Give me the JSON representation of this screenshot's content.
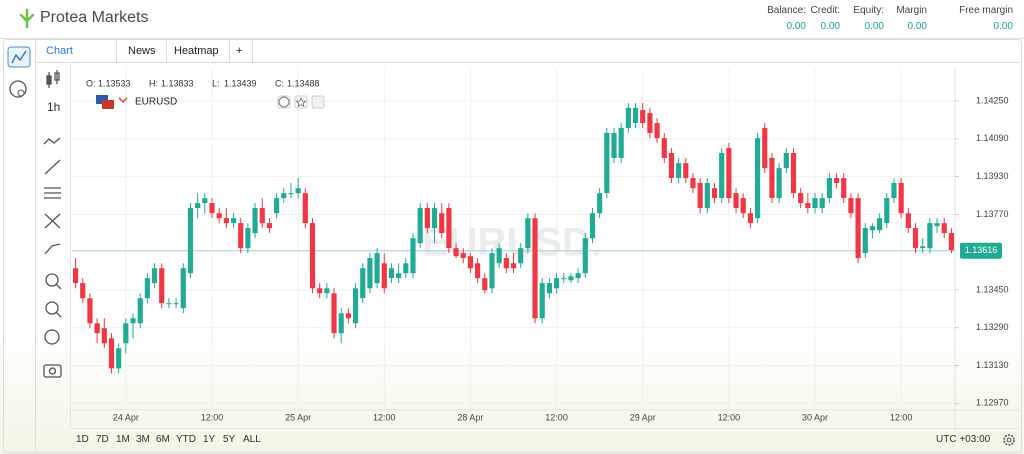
{
  "header": {
    "logo": "Protea Markets",
    "fields": [
      {
        "label": "Balance:",
        "value": "0.00"
      },
      {
        "label": "Credit:",
        "value": "0.00"
      },
      {
        "label": "Equity:",
        "value": "0.00"
      },
      {
        "label": "Margin",
        "value": "0.00"
      },
      {
        "label": "Free margin",
        "value": "0.00"
      }
    ]
  },
  "tabs": [
    "Chart",
    "News",
    "Heatmap",
    "+"
  ],
  "timeframe": "1h",
  "ranges": [
    "1D",
    "7D",
    "1M",
    "3M",
    "6M",
    "YTD",
    "1Y",
    "5Y",
    "ALL"
  ],
  "timezone": "UTC +03:00",
  "chart_data": {
    "type": "candlestick",
    "symbol": "EURUSD",
    "watermark": "EURUSD.",
    "info": [
      {
        "label": "O:",
        "value": 1.13533
      },
      {
        "label": "H:",
        "value": 1.13833
      },
      {
        "label": "L:",
        "value": 1.13439
      },
      {
        "label": "C:",
        "value": 1.13488
      }
    ],
    "up_color": "#22ab94",
    "down_color": "#f23645",
    "grid": true,
    "last_price": 1.13616,
    "last_price_color": "#22ab94",
    "ylim": [
      1.1295,
      1.1439
    ],
    "yticks": [
      {
        "value": 1.1425,
        "label": "1.14250"
      },
      {
        "value": 1.1409,
        "label": "1.14090"
      },
      {
        "value": 1.1393,
        "label": "1.13930"
      },
      {
        "value": 1.1377,
        "label": "1.13770"
      },
      {
        "value": 1.1345,
        "label": "1.13450"
      },
      {
        "value": 1.1329,
        "label": "1.13290"
      },
      {
        "value": 1.1313,
        "label": "1.13130"
      },
      {
        "value": 1.1297,
        "label": "1.12970"
      }
    ],
    "categories": [
      null,
      null,
      null,
      null,
      null,
      null,
      null,
      "24 Apr",
      null,
      null,
      null,
      null,
      null,
      null,
      null,
      null,
      null,
      null,
      null,
      "12:00",
      null,
      null,
      null,
      null,
      null,
      null,
      null,
      null,
      null,
      null,
      null,
      "25 Apr",
      null,
      null,
      null,
      null,
      null,
      null,
      null,
      null,
      null,
      null,
      null,
      "12:00",
      null,
      null,
      null,
      null,
      null,
      null,
      null,
      null,
      null,
      null,
      null,
      "28 Apr",
      null,
      null,
      null,
      null,
      null,
      null,
      null,
      null,
      null,
      null,
      null,
      "12:00",
      null,
      null,
      null,
      null,
      null,
      null,
      null,
      null,
      null,
      null,
      null,
      "29 Apr",
      null,
      null,
      null,
      null,
      null,
      null,
      null,
      null,
      null,
      null,
      null,
      "12:00",
      null,
      null,
      null,
      null,
      null,
      null,
      null,
      null,
      null,
      null,
      null,
      "30 Apr",
      null,
      null,
      null,
      null,
      null,
      null,
      null,
      null,
      null,
      null,
      null,
      "12:00",
      null,
      null,
      null,
      null,
      null,
      null,
      null
    ],
    "ohlc": [
      [
        1.13542,
        1.13585,
        1.13457,
        1.13479
      ],
      [
        1.13479,
        1.135,
        1.13394,
        1.13415
      ],
      [
        1.13415,
        1.13436,
        1.13288,
        1.13309
      ],
      [
        1.13309,
        1.1333,
        1.13224,
        1.13267
      ],
      [
        1.13288,
        1.1333,
        1.13203,
        1.13224
      ],
      [
        1.13245,
        1.13267,
        1.13097,
        1.13118
      ],
      [
        1.13118,
        1.13224,
        1.13097,
        1.13203
      ],
      [
        1.13224,
        1.1333,
        1.13182,
        1.13309
      ],
      [
        1.13309,
        1.13351,
        1.13245,
        1.1333
      ],
      [
        1.13309,
        1.13436,
        1.13288,
        1.13415
      ],
      [
        1.13415,
        1.13521,
        1.13394,
        1.135
      ],
      [
        1.13479,
        1.13563,
        1.13457,
        1.13542
      ],
      [
        1.13542,
        1.13563,
        1.13373,
        1.13394
      ],
      [
        1.13394,
        1.13415,
        1.13373,
        1.13394
      ],
      [
        1.13394,
        1.13415,
        1.13373,
        1.13394
      ],
      [
        1.13373,
        1.13563,
        1.13351,
        1.13542
      ],
      [
        1.13521,
        1.13818,
        1.135,
        1.13797
      ],
      [
        1.13797,
        1.1386,
        1.13754,
        1.13818
      ],
      [
        1.13818,
        1.1386,
        1.13775,
        1.13839
      ],
      [
        1.13818,
        1.13839,
        1.13754,
        1.13775
      ],
      [
        1.13775,
        1.13797,
        1.13733,
        1.13754
      ],
      [
        1.13754,
        1.13797,
        1.13712,
        1.13733
      ],
      [
        1.13733,
        1.13775,
        1.13712,
        1.13754
      ],
      [
        1.13733,
        1.13754,
        1.13606,
        1.13627
      ],
      [
        1.13627,
        1.13733,
        1.13606,
        1.13712
      ],
      [
        1.13691,
        1.13818,
        1.13669,
        1.13797
      ],
      [
        1.13797,
        1.13839,
        1.13712,
        1.13733
      ],
      [
        1.13733,
        1.13754,
        1.13691,
        1.13712
      ],
      [
        1.13775,
        1.1386,
        1.13754,
        1.13839
      ],
      [
        1.13839,
        1.13881,
        1.13818,
        1.1386
      ],
      [
        1.1386,
        1.13903,
        1.13839,
        1.1386
      ],
      [
        1.1386,
        1.13924,
        1.13839,
        1.13881
      ],
      [
        1.1386,
        1.13881,
        1.13712,
        1.13733
      ],
      [
        1.13733,
        1.13754,
        1.13436,
        1.13457
      ],
      [
        1.13457,
        1.13479,
        1.13415,
        1.13436
      ],
      [
        1.13436,
        1.13479,
        1.13415,
        1.13457
      ],
      [
        1.13436,
        1.13457,
        1.13245,
        1.13267
      ],
      [
        1.13267,
        1.13373,
        1.13224,
        1.13351
      ],
      [
        1.13351,
        1.13373,
        1.13309,
        1.1333
      ],
      [
        1.13309,
        1.13479,
        1.13288,
        1.13457
      ],
      [
        1.13415,
        1.13563,
        1.13394,
        1.13542
      ],
      [
        1.13457,
        1.13606,
        1.13436,
        1.13585
      ],
      [
        1.13479,
        1.13627,
        1.13457,
        1.13606
      ],
      [
        1.13563,
        1.13606,
        1.13436,
        1.13457
      ],
      [
        1.135,
        1.13563,
        1.13479,
        1.13542
      ],
      [
        1.135,
        1.13563,
        1.13479,
        1.13521
      ],
      [
        1.13521,
        1.13585,
        1.135,
        1.13563
      ],
      [
        1.13521,
        1.13691,
        1.135,
        1.13669
      ],
      [
        1.13648,
        1.13818,
        1.13627,
        1.13797
      ],
      [
        1.13797,
        1.13818,
        1.13691,
        1.13712
      ],
      [
        1.13712,
        1.13818,
        1.13648,
        1.13797
      ],
      [
        1.13775,
        1.13818,
        1.13669,
        1.13691
      ],
      [
        1.13797,
        1.13818,
        1.13606,
        1.13627
      ],
      [
        1.13627,
        1.13648,
        1.13585,
        1.13593
      ],
      [
        1.13606,
        1.13627,
        1.13563,
        1.13585
      ],
      [
        1.13593,
        1.13606,
        1.13521,
        1.13542
      ],
      [
        1.13563,
        1.13585,
        1.13479,
        1.135
      ],
      [
        1.135,
        1.13521,
        1.13436,
        1.13449
      ],
      [
        1.13457,
        1.13627,
        1.13436,
        1.13606
      ],
      [
        1.13563,
        1.13648,
        1.13542,
        1.13627
      ],
      [
        1.13585,
        1.13606,
        1.13521,
        1.13542
      ],
      [
        1.13563,
        1.13606,
        1.13521,
        1.13542
      ],
      [
        1.13563,
        1.13648,
        1.13542,
        1.13627
      ],
      [
        1.13627,
        1.13775,
        1.13606,
        1.13754
      ],
      [
        1.13754,
        1.13775,
        1.13309,
        1.1333
      ],
      [
        1.1333,
        1.135,
        1.13309,
        1.13479
      ],
      [
        1.13436,
        1.135,
        1.13415,
        1.13479
      ],
      [
        1.13457,
        1.13521,
        1.13436,
        1.135
      ],
      [
        1.135,
        1.13521,
        1.13479,
        1.135
      ],
      [
        1.13491,
        1.13521,
        1.13479,
        1.13508
      ],
      [
        1.135,
        1.13542,
        1.13479,
        1.13521
      ],
      [
        1.13521,
        1.13691,
        1.135,
        1.13669
      ],
      [
        1.13669,
        1.13797,
        1.13648,
        1.13775
      ],
      [
        1.13775,
        1.13881,
        1.13754,
        1.1386
      ],
      [
        1.1386,
        1.14136,
        1.13839,
        1.14115
      ],
      [
        1.14009,
        1.14136,
        1.13987,
        1.14115
      ],
      [
        1.14009,
        1.14157,
        1.13987,
        1.14136
      ],
      [
        1.14136,
        1.14242,
        1.14115,
        1.14221
      ],
      [
        1.14157,
        1.14242,
        1.14136,
        1.14221
      ],
      [
        1.14212,
        1.14242,
        1.14136,
        1.14157
      ],
      [
        1.14199,
        1.14221,
        1.14093,
        1.14115
      ],
      [
        1.14157,
        1.14178,
        1.14072,
        1.14093
      ],
      [
        1.14093,
        1.14115,
        1.13987,
        1.14009
      ],
      [
        1.1403,
        1.14051,
        1.13903,
        1.13924
      ],
      [
        1.13924,
        1.14009,
        1.13903,
        1.13987
      ],
      [
        1.13987,
        1.14009,
        1.13903,
        1.13924
      ],
      [
        1.13924,
        1.13945,
        1.1386,
        1.13881
      ],
      [
        1.13903,
        1.13924,
        1.13775,
        1.13797
      ],
      [
        1.13797,
        1.13924,
        1.13775,
        1.13903
      ],
      [
        1.13881,
        1.13903,
        1.13818,
        1.13839
      ],
      [
        1.13839,
        1.14051,
        1.13818,
        1.1403
      ],
      [
        1.14051,
        1.14072,
        1.13818,
        1.13839
      ],
      [
        1.1386,
        1.13881,
        1.13775,
        1.13797
      ],
      [
        1.13839,
        1.1386,
        1.13754,
        1.13775
      ],
      [
        1.13775,
        1.13797,
        1.13712,
        1.13733
      ],
      [
        1.13754,
        1.14115,
        1.13733,
        1.14093
      ],
      [
        1.14136,
        1.14157,
        1.13945,
        1.13966
      ],
      [
        1.14009,
        1.1403,
        1.13818,
        1.13839
      ],
      [
        1.13839,
        1.13987,
        1.13818,
        1.13966
      ],
      [
        1.13966,
        1.14051,
        1.13945,
        1.1403
      ],
      [
        1.1403,
        1.14051,
        1.13839,
        1.1386
      ],
      [
        1.1386,
        1.13881,
        1.13797,
        1.13818
      ],
      [
        1.13818,
        1.1386,
        1.13775,
        1.13797
      ],
      [
        1.13797,
        1.1386,
        1.13775,
        1.13839
      ],
      [
        1.13797,
        1.1386,
        1.13775,
        1.13839
      ],
      [
        1.13839,
        1.13945,
        1.13818,
        1.13924
      ],
      [
        1.13924,
        1.13945,
        1.13881,
        1.13903
      ],
      [
        1.13924,
        1.13945,
        1.13818,
        1.13839
      ],
      [
        1.13839,
        1.1386,
        1.13754,
        1.13775
      ],
      [
        1.13839,
        1.1386,
        1.13563,
        1.13585
      ],
      [
        1.13606,
        1.13733,
        1.13585,
        1.13712
      ],
      [
        1.13703,
        1.13733,
        1.13669,
        1.1372
      ],
      [
        1.13703,
        1.13775,
        1.13691,
        1.13754
      ],
      [
        1.13733,
        1.1386,
        1.13712,
        1.13839
      ],
      [
        1.13839,
        1.13924,
        1.13818,
        1.13903
      ],
      [
        1.13903,
        1.13924,
        1.13754,
        1.13775
      ],
      [
        1.13775,
        1.13797,
        1.13691,
        1.13712
      ],
      [
        1.13712,
        1.13733,
        1.13606,
        1.13627
      ],
      [
        1.13627,
        1.13669,
        1.13606,
        1.13635
      ],
      [
        1.13627,
        1.13754,
        1.13606,
        1.13733
      ],
      [
        1.1372,
        1.13754,
        1.13691,
        1.13733
      ],
      [
        1.13733,
        1.13754,
        1.13669,
        1.13691
      ],
      [
        1.13691,
        1.13712,
        1.13606,
        1.13619
      ]
    ]
  }
}
